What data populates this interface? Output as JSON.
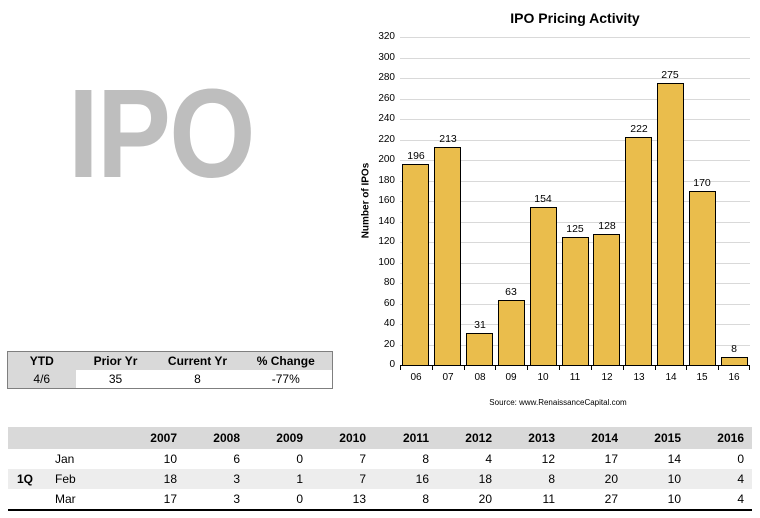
{
  "logo": {
    "text": "IPO",
    "color": "#bebebe"
  },
  "chart_data": {
    "type": "bar",
    "title": "IPO Pricing Activity",
    "ylabel": "Number of IPOs",
    "xlabel": "",
    "categories": [
      "06",
      "07",
      "08",
      "09",
      "10",
      "11",
      "12",
      "13",
      "14",
      "15",
      "16"
    ],
    "values": [
      196,
      213,
      31,
      63,
      154,
      125,
      128,
      222,
      275,
      170,
      8
    ],
    "ylim": [
      0,
      320
    ],
    "ytick_step": 20,
    "grid": true,
    "legend": "none",
    "bar_color": "#EABD4C",
    "bar_border_color": "#000000",
    "gridline_color": "#d9d9d9",
    "source": "Source: www.RenaissanceCapital.com"
  },
  "ytd_table": {
    "headers": [
      "YTD",
      "Prior Yr",
      "Current Yr",
      "% Change"
    ],
    "row": [
      "4/6",
      "35",
      "8",
      "-77%"
    ]
  },
  "monthly_table": {
    "quarter_label": "1Q",
    "year_headers": [
      "2007",
      "2008",
      "2009",
      "2010",
      "2011",
      "2012",
      "2013",
      "2014",
      "2015",
      "2016"
    ],
    "rows": [
      {
        "month": "Jan",
        "values": [
          10,
          6,
          0,
          7,
          8,
          4,
          12,
          17,
          14,
          0
        ]
      },
      {
        "month": "Feb",
        "values": [
          18,
          3,
          1,
          7,
          16,
          18,
          8,
          20,
          10,
          4
        ]
      },
      {
        "month": "Mar",
        "values": [
          17,
          3,
          0,
          13,
          8,
          20,
          11,
          27,
          10,
          4
        ]
      }
    ]
  }
}
